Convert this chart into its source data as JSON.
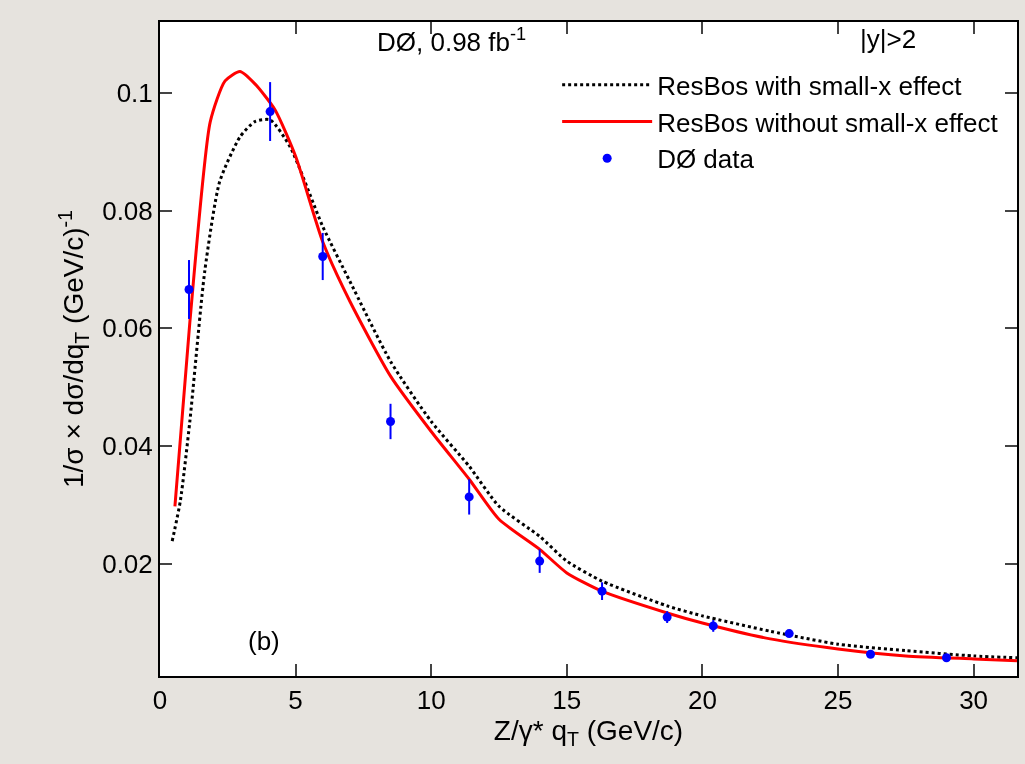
{
  "chart_data": {
    "type": "line",
    "xlabel": "Z/γ* q$_{T}$ (GeV/c)",
    "ylabel": "1/σ × dσ/dq$_{T}$ (GeV/c)$^{-1}$",
    "xlim": [
      0,
      31.6
    ],
    "ylim": [
      0.001,
      0.112
    ],
    "xticks": [
      0,
      5,
      10,
      15,
      20,
      25,
      30
    ],
    "yticks": [
      0.02,
      0.04,
      0.06,
      0.08,
      {
        "value": 0.1,
        "label": "0.1"
      }
    ],
    "grid": false,
    "legend": "top right",
    "annotations": [
      "DØ, 0.98 fb$^{-1}$",
      "|y|>2",
      "(b)"
    ],
    "series": [
      {
        "name": "ResBos with small-x effect",
        "color": "#000000",
        "line_style": "dotted",
        "marker": "none",
        "x": [
          0.45,
          0.75,
          1.1,
          1.65,
          2.2,
          2.95,
          3.5,
          4.06,
          4.8,
          6,
          7,
          8.5,
          10,
          11.4,
          12.5,
          14,
          15,
          16.3,
          18.7,
          20,
          22.5,
          25,
          27.5,
          30,
          31.6
        ],
        "values": [
          0.0239,
          0.0307,
          0.0442,
          0.0697,
          0.0849,
          0.0925,
          0.0951,
          0.0954,
          0.0908,
          0.0773,
          0.068,
          0.0544,
          0.0442,
          0.0366,
          0.0298,
          0.0247,
          0.0205,
          0.0171,
          0.0129,
          0.0112,
          0.0086,
          0.0064,
          0.0053,
          0.0044,
          0.0041
        ]
      },
      {
        "name": "ResBos without small-x effect",
        "color": "#ff0000",
        "line_style": "solid",
        "marker": "none",
        "x": [
          0.55,
          1.1,
          1.85,
          2.4,
          2.95,
          3.5,
          4.24,
          5,
          6,
          7,
          8.5,
          10,
          11.4,
          12.5,
          14,
          15,
          16.3,
          18.7,
          20,
          22.5,
          25,
          27.5,
          30,
          31.6
        ],
        "values": [
          0.0298,
          0.061,
          0.095,
          0.102,
          0.1036,
          0.1015,
          0.0971,
          0.0892,
          0.0747,
          0.0646,
          0.0519,
          0.0425,
          0.0344,
          0.0276,
          0.0225,
          0.0185,
          0.0154,
          0.0117,
          0.01,
          0.0073,
          0.0056,
          0.0044,
          0.0039,
          0.0036
        ]
      },
      {
        "name": "DØ data",
        "type": "scatter",
        "color": "#0000ff",
        "marker": "circle",
        "x": [
          1.07,
          4.06,
          6.0,
          8.5,
          11.4,
          14.0,
          16.3,
          18.7,
          20.4,
          23.2,
          26.2,
          29.0
        ],
        "values": [
          0.0666,
          0.0968,
          0.0722,
          0.0442,
          0.0314,
          0.0205,
          0.0154,
          0.011,
          0.0095,
          0.0082,
          0.0047,
          0.0041
        ],
        "errors": [
          0.005,
          0.005,
          0.004,
          0.003,
          0.003,
          0.002,
          0.0015,
          0.001,
          0.001,
          null,
          null,
          null
        ]
      }
    ]
  }
}
